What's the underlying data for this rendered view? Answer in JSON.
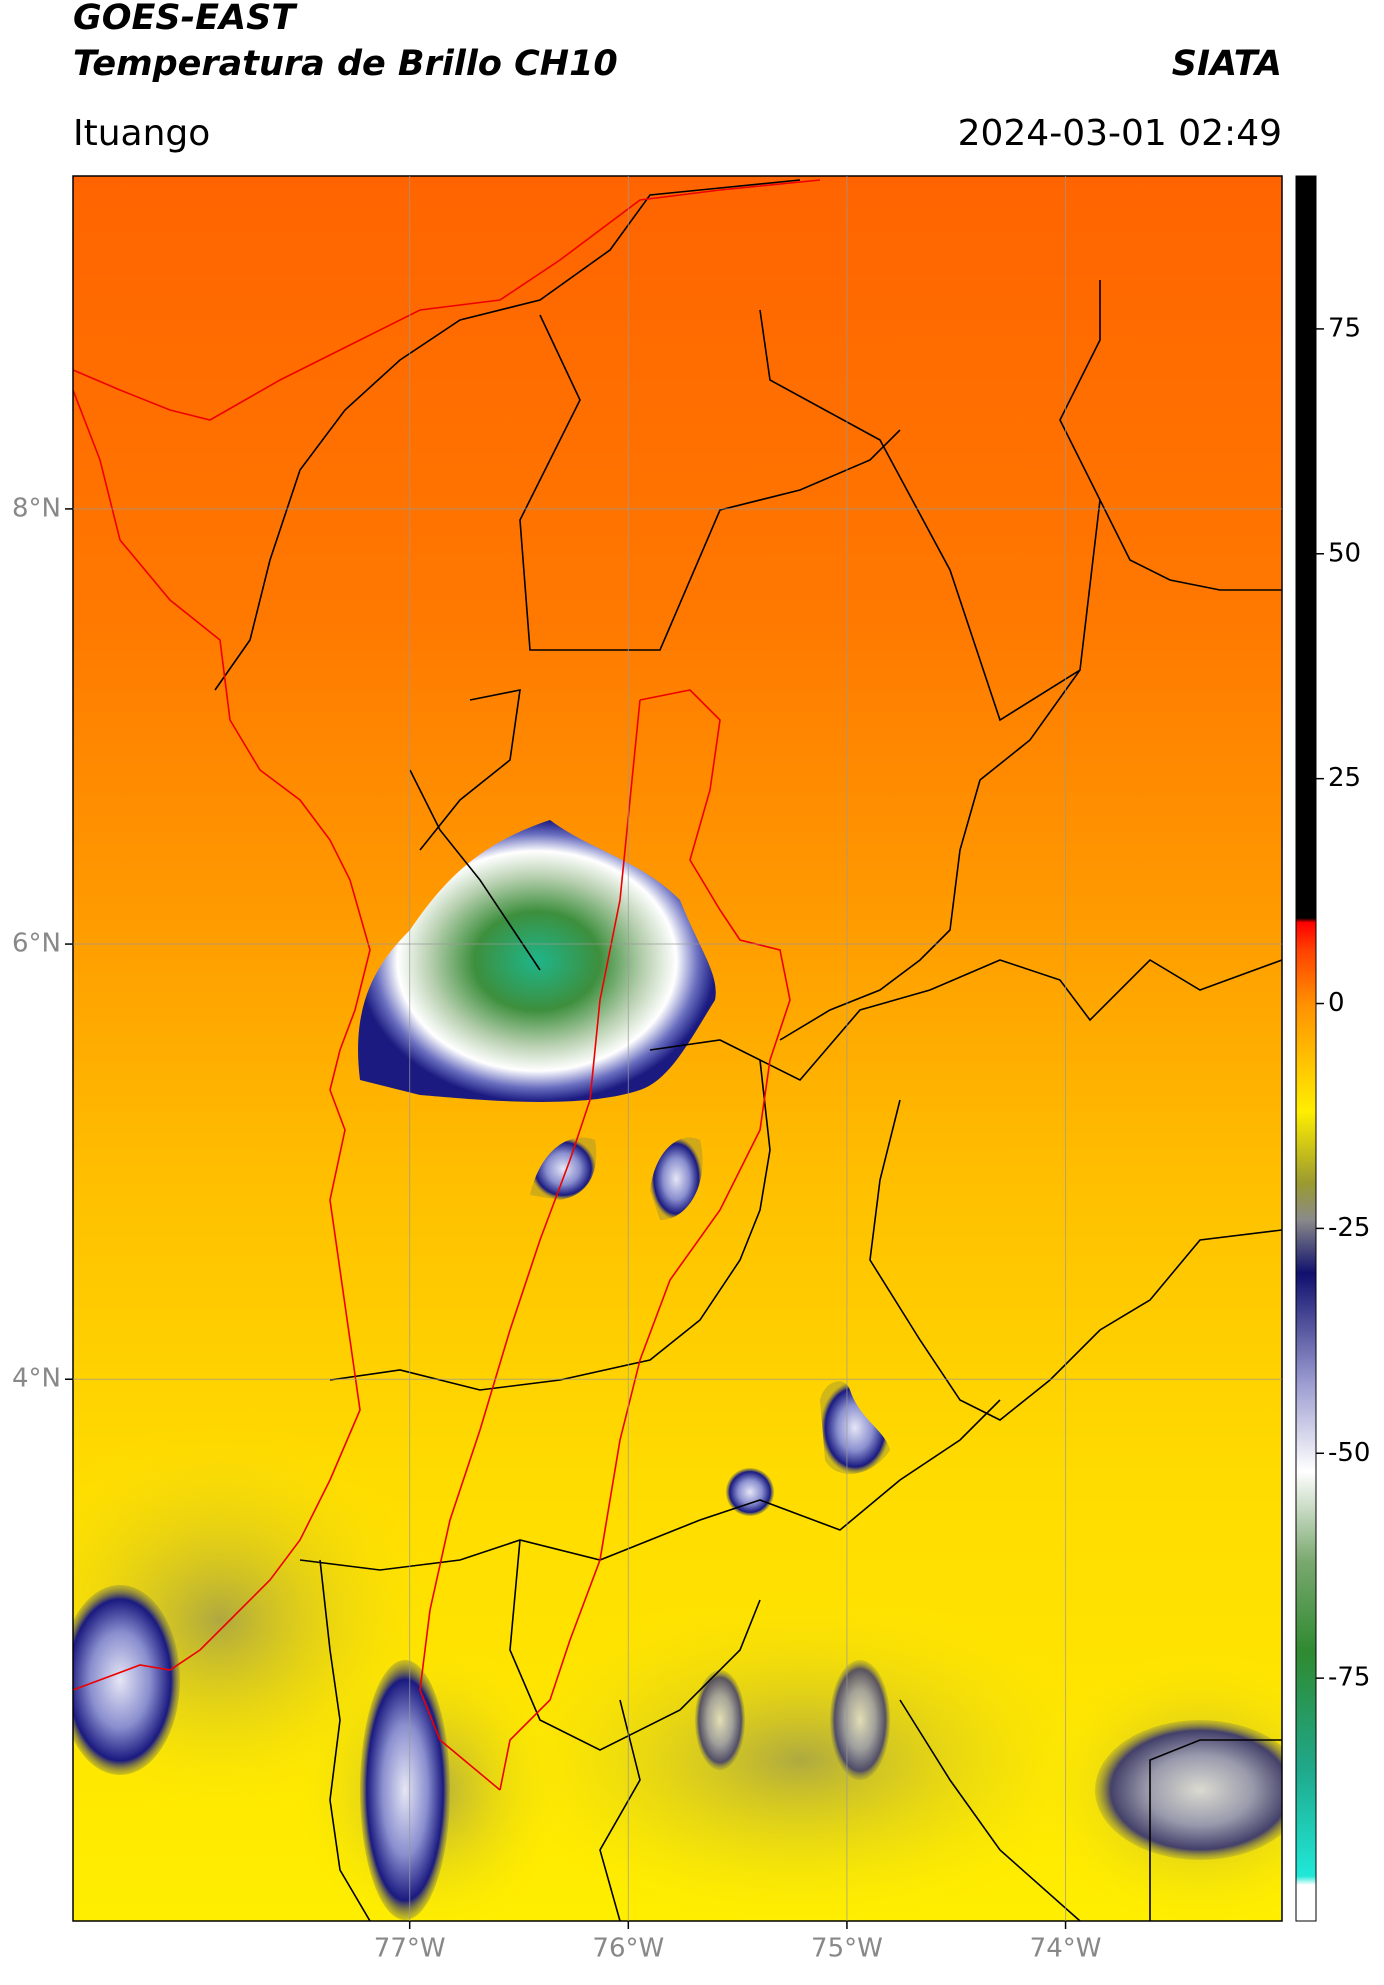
{
  "header": {
    "satellite": "GOES-EAST",
    "product": "Temperatura de Brillo CH10",
    "agency": "SIATA",
    "location": "Ituango",
    "datetime": "2024-03-01 02:49"
  },
  "chart_data": {
    "type": "map",
    "xlim": [
      -78.54,
      -73.01
    ],
    "ylim": [
      1.51,
      9.53
    ],
    "xticks": [
      {
        "value": -77,
        "label": "77°W"
      },
      {
        "value": -76,
        "label": "76°W"
      },
      {
        "value": -75,
        "label": "75°W"
      },
      {
        "value": -74,
        "label": "74°W"
      }
    ],
    "yticks": [
      {
        "value": 8,
        "label": "8°N"
      },
      {
        "value": 6,
        "label": "6°N"
      },
      {
        "value": 4,
        "label": "4°N"
      }
    ],
    "grid": true,
    "colorbar": {
      "lim": [
        -102,
        92
      ],
      "ticks": [
        75,
        50,
        25,
        0,
        -25,
        -50,
        -75
      ],
      "stops": [
        {
          "value": -102,
          "color": "#ffffff"
        },
        {
          "value": -98,
          "color": "#ffffff"
        },
        {
          "value": -97,
          "color": "#20e8d8"
        },
        {
          "value": -85,
          "color": "#1fa88a"
        },
        {
          "value": -72,
          "color": "#2f8a30"
        },
        {
          "value": -62,
          "color": "#7aa870"
        },
        {
          "value": -52,
          "color": "#ffffff"
        },
        {
          "value": -42,
          "color": "#9a9ad0"
        },
        {
          "value": -30,
          "color": "#10106e"
        },
        {
          "value": -24,
          "color": "#8a8a8a"
        },
        {
          "value": -20,
          "color": "#9a9a30"
        },
        {
          "value": -12,
          "color": "#ffee00"
        },
        {
          "value": 0,
          "color": "#ff9000"
        },
        {
          "value": 6,
          "color": "#ff4000"
        },
        {
          "value": 9,
          "color": "#ff0000"
        },
        {
          "value": 9.5,
          "color": "#000000"
        },
        {
          "value": 92,
          "color": "#000000"
        }
      ]
    }
  }
}
